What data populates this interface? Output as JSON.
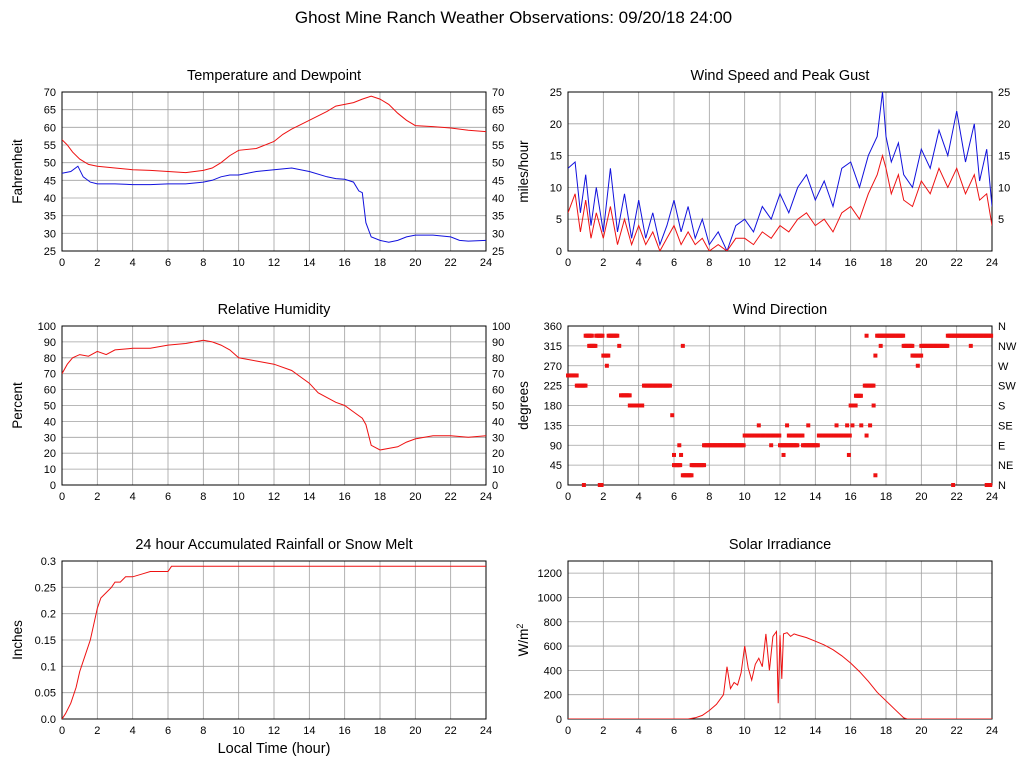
{
  "page_title": "Ghost Mine Ranch Weather Observations: 09/20/18 24:00",
  "colors": {
    "red": "#ee1111",
    "blue": "#1111dd",
    "grid": "#a0a0a0",
    "axis": "#000000"
  },
  "chart_data": [
    {
      "id": "temp",
      "type": "line",
      "title": "Temperature and Dewpoint",
      "xlabel": "",
      "ylabel": "Fahrenheit",
      "xlim": [
        0,
        24
      ],
      "ylim": [
        25,
        70
      ],
      "xticks": [
        0,
        2,
        4,
        6,
        8,
        10,
        12,
        14,
        16,
        18,
        20,
        22,
        24
      ],
      "yticks": [
        25,
        30,
        35,
        40,
        45,
        50,
        55,
        60,
        65,
        70
      ],
      "right_yticks": [
        "25",
        "30",
        "35",
        "40",
        "45",
        "50",
        "55",
        "60",
        "65",
        "70"
      ],
      "grid": true,
      "series": [
        {
          "color": "#ee1111",
          "x": [
            0,
            0.3,
            0.6,
            1,
            1.5,
            2,
            3,
            4,
            5,
            6,
            7,
            7.5,
            8,
            8.5,
            9,
            9.5,
            10,
            11,
            12,
            12.5,
            13,
            14,
            15,
            15.5,
            16,
            16.5,
            17,
            17.5,
            18,
            18.5,
            19,
            19.5,
            20,
            21,
            22,
            23,
            24
          ],
          "y": [
            56.5,
            55,
            53,
            51,
            49.5,
            49,
            48.5,
            48,
            47.8,
            47.5,
            47.2,
            47.5,
            47.8,
            48.5,
            50,
            52,
            53.5,
            54,
            56,
            58,
            59.5,
            62,
            64.5,
            66,
            66.5,
            67,
            68,
            68.8,
            68,
            66.5,
            64,
            62,
            60.5,
            60.2,
            59.8,
            59.2,
            58.8
          ]
        },
        {
          "color": "#1111dd",
          "x": [
            0,
            0.5,
            0.9,
            1.2,
            1.6,
            2,
            3,
            4,
            5,
            6,
            7,
            8,
            8.5,
            9,
            9.5,
            10,
            11,
            12,
            13,
            13.5,
            14,
            15,
            15.5,
            16,
            16.5,
            16.8,
            17,
            17.2,
            17.5,
            18,
            18.5,
            19,
            19.5,
            20,
            21,
            22,
            22.5,
            23,
            24
          ],
          "y": [
            47,
            47.5,
            49,
            46,
            44.5,
            44,
            44,
            43.8,
            43.8,
            44,
            44,
            44.5,
            45,
            46,
            46.5,
            46.5,
            47.5,
            48,
            48.5,
            48,
            47.5,
            46,
            45.5,
            45.3,
            44.5,
            42,
            41.5,
            33,
            29,
            28,
            27.5,
            28,
            29,
            29.5,
            29.5,
            29,
            28,
            27.8,
            28
          ]
        }
      ]
    },
    {
      "id": "wind",
      "type": "line",
      "title": "Wind Speed and Peak Gust",
      "xlabel": "",
      "ylabel": "miles/hour",
      "xlim": [
        0,
        24
      ],
      "ylim": [
        0,
        25
      ],
      "xticks": [
        0,
        2,
        4,
        6,
        8,
        10,
        12,
        14,
        16,
        18,
        20,
        22,
        24
      ],
      "yticks": [
        0,
        5,
        10,
        15,
        20,
        25
      ],
      "right_yticks": [
        "5",
        "10",
        "15",
        "20",
        "25"
      ],
      "grid": true,
      "series": [
        {
          "color": "#1111dd",
          "x": [
            0,
            0.4,
            0.7,
            1,
            1.3,
            1.6,
            2,
            2.4,
            2.8,
            3.2,
            3.6,
            4,
            4.4,
            4.8,
            5.2,
            5.6,
            6,
            6.4,
            6.8,
            7.2,
            7.6,
            8,
            8.5,
            9,
            9.5,
            10,
            10.5,
            11,
            11.5,
            12,
            12.5,
            13,
            13.5,
            14,
            14.5,
            15,
            15.5,
            16,
            16.5,
            17,
            17.5,
            17.8,
            18,
            18.3,
            18.7,
            19,
            19.5,
            20,
            20.5,
            21,
            21.5,
            22,
            22.5,
            23,
            23.3,
            23.7,
            24
          ],
          "y": [
            13,
            14,
            6,
            12,
            4,
            10,
            3,
            13,
            3,
            9,
            2,
            8,
            2,
            6,
            1,
            4,
            8,
            3,
            7,
            2,
            5,
            1,
            3,
            0,
            4,
            5,
            3,
            7,
            5,
            9,
            6,
            10,
            12,
            8,
            11,
            7,
            13,
            14,
            10,
            15,
            18,
            25,
            18,
            14,
            17,
            12,
            10,
            16,
            13,
            19,
            15,
            22,
            14,
            20,
            11,
            16,
            7
          ]
        },
        {
          "color": "#ee1111",
          "x": [
            0,
            0.4,
            0.7,
            1,
            1.3,
            1.6,
            2,
            2.4,
            2.8,
            3.2,
            3.6,
            4,
            4.4,
            4.8,
            5.2,
            5.6,
            6,
            6.4,
            6.8,
            7.2,
            7.6,
            8,
            8.5,
            9,
            9.5,
            10,
            10.5,
            11,
            11.5,
            12,
            12.5,
            13,
            13.5,
            14,
            14.5,
            15,
            15.5,
            16,
            16.5,
            17,
            17.5,
            17.8,
            18,
            18.3,
            18.7,
            19,
            19.5,
            20,
            20.5,
            21,
            21.5,
            22,
            22.5,
            23,
            23.3,
            23.7,
            24
          ],
          "y": [
            6,
            9,
            3,
            8,
            2,
            6,
            2,
            7,
            1,
            5,
            1,
            4,
            1,
            3,
            0,
            2,
            4,
            1,
            3,
            1,
            2,
            0,
            1,
            0,
            2,
            2,
            1,
            3,
            2,
            4,
            3,
            5,
            6,
            4,
            5,
            3,
            6,
            7,
            5,
            9,
            12,
            15,
            13,
            9,
            12,
            8,
            7,
            11,
            9,
            13,
            10,
            13,
            9,
            12,
            8,
            9,
            4
          ]
        }
      ]
    },
    {
      "id": "rh",
      "type": "line",
      "title": "Relative Humidity",
      "xlabel": "",
      "ylabel": "Percent",
      "xlim": [
        0,
        24
      ],
      "ylim": [
        0,
        100
      ],
      "xticks": [
        0,
        2,
        4,
        6,
        8,
        10,
        12,
        14,
        16,
        18,
        20,
        22,
        24
      ],
      "yticks": [
        0,
        10,
        20,
        30,
        40,
        50,
        60,
        70,
        80,
        90,
        100
      ],
      "right_yticks": [
        "0",
        "10",
        "20",
        "30",
        "40",
        "50",
        "60",
        "70",
        "80",
        "90",
        "100"
      ],
      "grid": true,
      "series": [
        {
          "color": "#ee1111",
          "x": [
            0,
            0.3,
            0.6,
            1,
            1.5,
            2,
            2.5,
            3,
            4,
            5,
            6,
            7,
            8,
            8.5,
            9,
            9.5,
            10,
            11,
            12,
            13,
            13.5,
            14,
            14.5,
            15,
            15.5,
            16,
            16.5,
            17,
            17.2,
            17.5,
            18,
            18.5,
            19,
            19.5,
            20,
            21,
            22,
            23,
            24
          ],
          "y": [
            70,
            76,
            80,
            82,
            81,
            84,
            82,
            85,
            86,
            86,
            88,
            89,
            91,
            90,
            88,
            85,
            80,
            78,
            76,
            72,
            68,
            64,
            58,
            55,
            52,
            50,
            46,
            42,
            38,
            25,
            22,
            23,
            24,
            27,
            29,
            31,
            31,
            30,
            31
          ]
        }
      ]
    },
    {
      "id": "dir",
      "type": "scatter",
      "title": "Wind Direction",
      "xlabel": "",
      "ylabel": "degrees",
      "xlim": [
        0,
        24
      ],
      "ylim": [
        0,
        360
      ],
      "xticks": [
        0,
        2,
        4,
        6,
        8,
        10,
        12,
        14,
        16,
        18,
        20,
        22,
        24
      ],
      "yticks": [
        0,
        45,
        90,
        135,
        180,
        225,
        270,
        315,
        360
      ],
      "right_yticks": [
        "N",
        "NE",
        "E",
        "SE",
        "S",
        "SW",
        "W",
        "NW",
        "N"
      ],
      "grid": true,
      "point_runs": [
        {
          "x0": 0,
          "x1": 0.5,
          "y": 248
        },
        {
          "x0": 0.5,
          "x1": 1,
          "y": 225
        },
        {
          "x0": 1,
          "x1": 1.4,
          "y": 338
        },
        {
          "x0": 1.2,
          "x1": 1.6,
          "y": 315
        },
        {
          "x0": 1.6,
          "x1": 2,
          "y": 338
        },
        {
          "x0": 2,
          "x1": 2.3,
          "y": 293
        },
        {
          "x0": 2.3,
          "x1": 2.8,
          "y": 338
        },
        {
          "x0": 3,
          "x1": 3.5,
          "y": 203
        },
        {
          "x0": 3.5,
          "x1": 4.2,
          "y": 180
        },
        {
          "x0": 4.3,
          "x1": 5.8,
          "y": 225
        },
        {
          "x0": 6,
          "x1": 6.4,
          "y": 45
        },
        {
          "x0": 6.5,
          "x1": 7,
          "y": 22
        },
        {
          "x0": 7,
          "x1": 7.7,
          "y": 45
        },
        {
          "x0": 7.7,
          "x1": 10,
          "y": 90
        },
        {
          "x0": 10,
          "x1": 12,
          "y": 112
        },
        {
          "x0": 12,
          "x1": 13,
          "y": 90
        },
        {
          "x0": 12.5,
          "x1": 13.3,
          "y": 112
        },
        {
          "x0": 13.3,
          "x1": 14.2,
          "y": 90
        },
        {
          "x0": 14.2,
          "x1": 16,
          "y": 112
        },
        {
          "x0": 16,
          "x1": 16.3,
          "y": 180
        },
        {
          "x0": 16.3,
          "x1": 16.6,
          "y": 202
        },
        {
          "x0": 16.8,
          "x1": 17.3,
          "y": 225
        },
        {
          "x0": 17.5,
          "x1": 19,
          "y": 338
        },
        {
          "x0": 19,
          "x1": 19.5,
          "y": 315
        },
        {
          "x0": 19.5,
          "x1": 20,
          "y": 293
        },
        {
          "x0": 20,
          "x1": 21.5,
          "y": 315
        },
        {
          "x0": 21.5,
          "x1": 24,
          "y": 338
        }
      ],
      "points": [
        {
          "x": 0.9,
          "y": 0
        },
        {
          "x": 1.9,
          "y": 0
        },
        {
          "x": 1.8,
          "y": 0
        },
        {
          "x": 2.2,
          "y": 270
        },
        {
          "x": 2.9,
          "y": 315
        },
        {
          "x": 5.9,
          "y": 158
        },
        {
          "x": 6.0,
          "y": 68
        },
        {
          "x": 6.3,
          "y": 90
        },
        {
          "x": 6.4,
          "y": 68
        },
        {
          "x": 6.5,
          "y": 315
        },
        {
          "x": 10.8,
          "y": 135
        },
        {
          "x": 11.5,
          "y": 90
        },
        {
          "x": 12.2,
          "y": 68
        },
        {
          "x": 12.4,
          "y": 135
        },
        {
          "x": 13.6,
          "y": 135
        },
        {
          "x": 15.2,
          "y": 135
        },
        {
          "x": 15.8,
          "y": 135
        },
        {
          "x": 15.9,
          "y": 68
        },
        {
          "x": 16.1,
          "y": 135
        },
        {
          "x": 16.6,
          "y": 135
        },
        {
          "x": 16.9,
          "y": 112
        },
        {
          "x": 17.1,
          "y": 135
        },
        {
          "x": 17.3,
          "y": 180
        },
        {
          "x": 17.4,
          "y": 22
        },
        {
          "x": 17.4,
          "y": 293
        },
        {
          "x": 16.9,
          "y": 338
        },
        {
          "x": 17.7,
          "y": 315
        },
        {
          "x": 19.8,
          "y": 270
        },
        {
          "x": 21.8,
          "y": 0
        },
        {
          "x": 22.8,
          "y": 315
        },
        {
          "x": 23.7,
          "y": 0
        },
        {
          "x": 23.9,
          "y": 0
        }
      ]
    },
    {
      "id": "rain",
      "type": "line",
      "title": "24 hour Accumulated Rainfall or Snow Melt",
      "xlabel": "Local Time (hour)",
      "ylabel": "Inches",
      "xlim": [
        0,
        24
      ],
      "ylim": [
        0,
        0.3
      ],
      "xticks": [
        0,
        2,
        4,
        6,
        8,
        10,
        12,
        14,
        16,
        18,
        20,
        22,
        24
      ],
      "yticks": [
        0,
        0.05,
        0.1,
        0.15,
        0.2,
        0.25,
        0.3
      ],
      "ytick_labels": [
        "0.0",
        "0.05",
        "0.1",
        "0.15",
        "0.2",
        "0.25",
        "0.3"
      ],
      "grid": true,
      "series": [
        {
          "color": "#ee1111",
          "x": [
            0,
            0.2,
            0.5,
            0.8,
            1,
            1.3,
            1.6,
            1.8,
            2,
            2.2,
            2.5,
            2.8,
            3,
            3.3,
            3.6,
            4,
            4.5,
            5,
            5.5,
            6,
            6.2,
            7,
            24
          ],
          "y": [
            0,
            0.01,
            0.03,
            0.06,
            0.09,
            0.12,
            0.15,
            0.18,
            0.21,
            0.23,
            0.24,
            0.25,
            0.26,
            0.26,
            0.27,
            0.27,
            0.275,
            0.28,
            0.28,
            0.28,
            0.29,
            0.29,
            0.29
          ]
        }
      ]
    },
    {
      "id": "solar",
      "type": "line",
      "title": "Solar Irradiance",
      "xlabel": "",
      "ylabel": "W/m",
      "ylabel_sup": "2",
      "xlim": [
        0,
        24
      ],
      "ylim": [
        0,
        1300
      ],
      "xticks": [
        0,
        2,
        4,
        6,
        8,
        10,
        12,
        14,
        16,
        18,
        20,
        22,
        24
      ],
      "yticks": [
        0,
        200,
        400,
        600,
        800,
        1000,
        1200
      ],
      "grid": true,
      "series": [
        {
          "color": "#ee1111",
          "x": [
            0,
            6.8,
            7.2,
            7.6,
            8,
            8.4,
            8.8,
            9,
            9.2,
            9.4,
            9.6,
            9.8,
            10,
            10.2,
            10.4,
            10.6,
            10.8,
            11,
            11.2,
            11.4,
            11.6,
            11.8,
            11.9,
            12,
            12.1,
            12.2,
            12.4,
            12.6,
            12.8,
            13,
            13.5,
            14,
            14.5,
            15,
            15.5,
            16,
            16.5,
            17,
            17.5,
            18,
            18.5,
            19,
            19.2,
            24
          ],
          "y": [
            0,
            0,
            10,
            30,
            70,
            120,
            200,
            430,
            250,
            300,
            280,
            380,
            600,
            420,
            320,
            450,
            500,
            430,
            700,
            400,
            680,
            720,
            130,
            690,
            330,
            700,
            710,
            680,
            700,
            690,
            670,
            640,
            610,
            570,
            520,
            460,
            390,
            310,
            220,
            150,
            80,
            10,
            0,
            0
          ]
        }
      ]
    }
  ]
}
